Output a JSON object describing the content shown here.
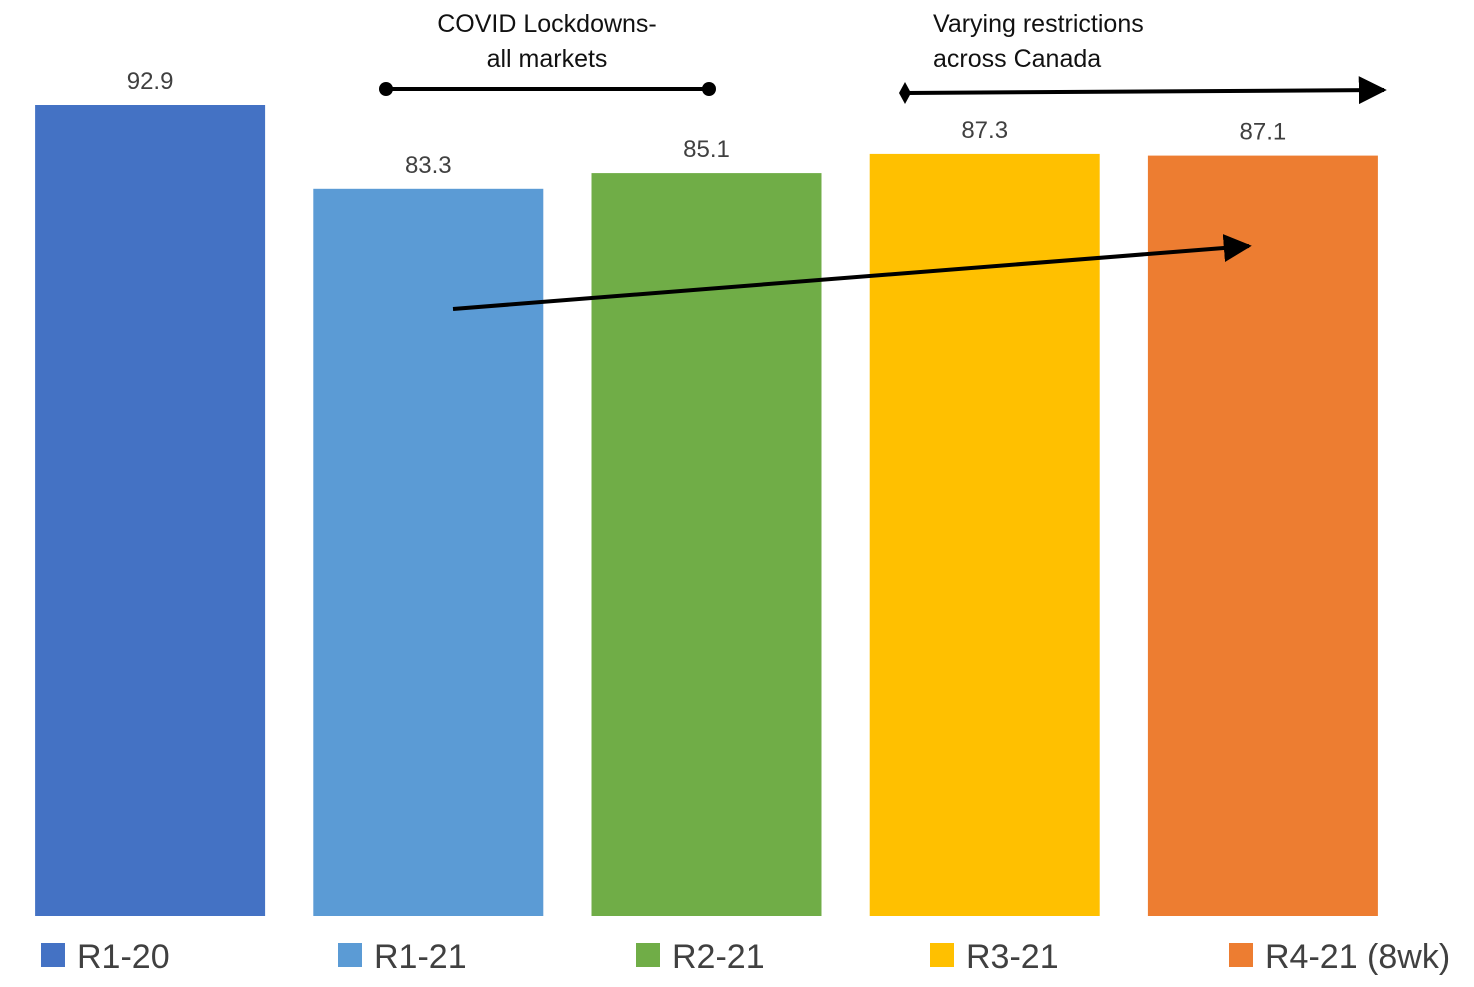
{
  "chart_data": {
    "type": "bar",
    "categories": [
      "R1-20",
      "R1-21",
      "R2-21",
      "R3-21",
      "R4-21 (8wk)"
    ],
    "values": [
      92.9,
      83.3,
      85.1,
      87.3,
      87.1
    ],
    "colors": [
      "#4472C4",
      "#5B9BD5",
      "#70AD47",
      "#FFC000",
      "#ED7D31"
    ],
    "data_labels": [
      "92.9",
      "83.3",
      "85.1",
      "87.3",
      "87.1"
    ],
    "title": "",
    "xlabel": "",
    "ylabel": "",
    "ylim": [
      0,
      100
    ],
    "grid": false,
    "legend": {
      "position": "bottom",
      "entries": [
        "R1-20",
        "R1-21",
        "R2-21",
        "R3-21",
        "R4-21 (8wk)"
      ]
    },
    "annotations": [
      {
        "id": "covid_lockdowns",
        "lines": [
          "COVID Lockdowns-",
          "all markets"
        ],
        "span": [
          "R1-21",
          "R2-21"
        ],
        "style": "dot-ended line"
      },
      {
        "id": "varying_restrictions",
        "lines": [
          "Varying restrictions",
          "across Canada"
        ],
        "span": [
          "R3-21",
          "R4-21 (8wk)"
        ],
        "style": "diamond-start arrow"
      },
      {
        "id": "trend_arrow",
        "from": "R1-21",
        "to": "R4-21 (8wk)",
        "style": "arrow"
      }
    ]
  }
}
